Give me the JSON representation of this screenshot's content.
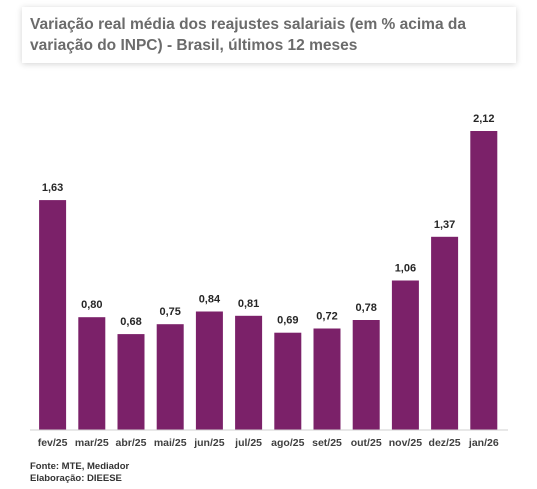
{
  "title": "Variação real média dos reajustes salariais (em % acima da variação do INPC) - Brasil, últimos 12 meses",
  "chart_data": {
    "type": "bar",
    "categories": [
      "fev/25",
      "mar/25",
      "abr/25",
      "mai/25",
      "jun/25",
      "jul/25",
      "ago/25",
      "set/25",
      "out/25",
      "nov/25",
      "dez/25",
      "jan/26"
    ],
    "values": [
      1.63,
      0.8,
      0.68,
      0.75,
      0.84,
      0.81,
      0.69,
      0.72,
      0.78,
      1.06,
      1.37,
      2.12
    ],
    "value_labels": [
      "1,63",
      "0,80",
      "0,68",
      "0,75",
      "0,84",
      "0,81",
      "0,69",
      "0,72",
      "0,78",
      "1,06",
      "1,37",
      "2,12"
    ],
    "bar_color": "#7b2169",
    "ylim": [
      0,
      2.12
    ],
    "grid": false,
    "legend": "none"
  },
  "footer": {
    "source": "Fonte: MTE, Mediador",
    "elaboration": "Elaboração: DIEESE"
  }
}
